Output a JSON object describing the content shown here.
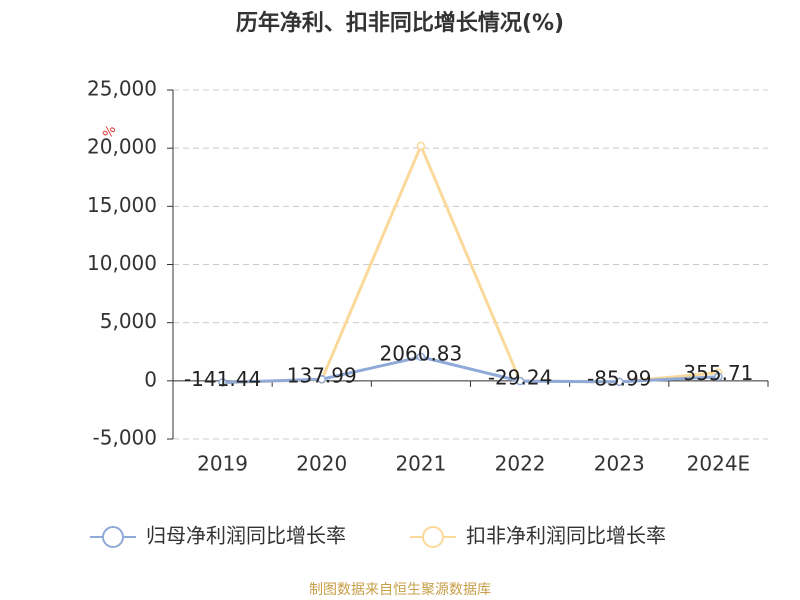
{
  "chart_data": {
    "type": "line",
    "title": "历年净利、扣非同比增长情况(%)",
    "y_unit": "%",
    "categories": [
      "2019",
      "2020",
      "2021",
      "2022",
      "2023",
      "2024E"
    ],
    "series": [
      {
        "name": "归母净利润同比增长率",
        "color": "#8fa9d8",
        "values": [
          -141.44,
          137.99,
          2060.83,
          -29.24,
          -85.99,
          355.71
        ]
      },
      {
        "name": "扣非净利润同比增长率",
        "color": "#fbd99a",
        "values": [
          -150,
          100,
          20200,
          0,
          -100,
          700
        ]
      }
    ],
    "ylim": [
      -5000,
      25000
    ],
    "yticks": [
      {
        "value": -5000,
        "label": "-5,000"
      },
      0,
      {
        "value": 5000,
        "label": "5,000"
      },
      {
        "value": 10000,
        "label": "10,000"
      },
      {
        "value": 15000,
        "label": "15,000"
      },
      {
        "value": 20000,
        "label": "20,000"
      },
      {
        "value": 25000,
        "label": "25,000"
      }
    ],
    "grid": true,
    "source": "制图数据来自恒生聚源数据库"
  }
}
